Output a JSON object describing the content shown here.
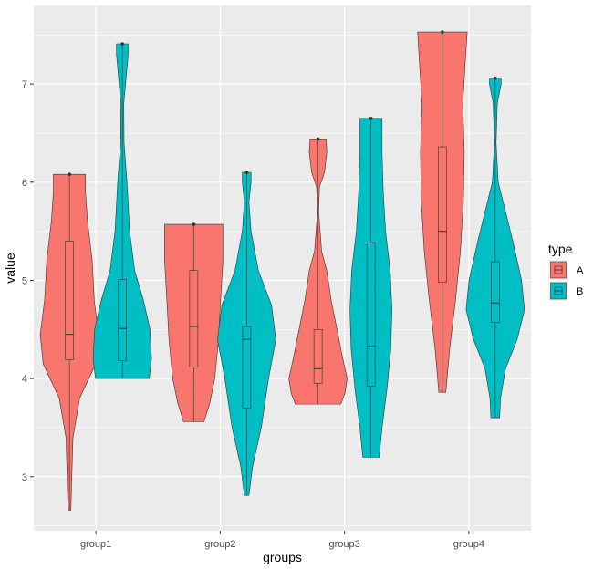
{
  "chart_data": {
    "type": "violin",
    "title": "",
    "xlabel": "groups",
    "ylabel": "value",
    "ylim": [
      2.45,
      7.8
    ],
    "yticks": [
      3,
      4,
      5,
      6,
      7
    ],
    "categories": [
      "group1",
      "group2",
      "group3",
      "group4"
    ],
    "legend": {
      "title": "type",
      "position": "right"
    },
    "grid": true,
    "series": [
      {
        "name": "A",
        "color": "#F8766D",
        "violins": [
          {
            "category": "group1",
            "min": 2.66,
            "max": 6.08,
            "q1": 4.19,
            "median": 4.45,
            "q3": 5.4,
            "shape": [
              [
                2.66,
                0.05
              ],
              [
                3.0,
                0.08
              ],
              [
                3.4,
                0.12
              ],
              [
                3.8,
                0.35
              ],
              [
                4.15,
                0.9
              ],
              [
                4.45,
                1.0
              ],
              [
                4.8,
                0.85
              ],
              [
                5.2,
                0.78
              ],
              [
                5.6,
                0.62
              ],
              [
                5.9,
                0.55
              ],
              [
                6.08,
                0.55
              ]
            ]
          },
          {
            "category": "group2",
            "min": 3.56,
            "max": 5.57,
            "q1": 4.12,
            "median": 4.53,
            "q3": 5.1,
            "shape": [
              [
                3.56,
                0.35
              ],
              [
                3.75,
                0.55
              ],
              [
                4.0,
                0.72
              ],
              [
                4.4,
                0.85
              ],
              [
                4.8,
                0.92
              ],
              [
                5.2,
                1.0
              ],
              [
                5.45,
                1.0
              ],
              [
                5.57,
                1.0
              ]
            ]
          },
          {
            "category": "group3",
            "min": 3.74,
            "max": 6.44,
            "q1": 3.95,
            "median": 4.1,
            "q3": 4.5,
            "shape": [
              [
                3.74,
                0.78
              ],
              [
                3.85,
                0.92
              ],
              [
                4.0,
                1.0
              ],
              [
                4.2,
                0.85
              ],
              [
                4.5,
                0.65
              ],
              [
                4.8,
                0.45
              ],
              [
                5.1,
                0.3
              ],
              [
                5.3,
                0.12
              ],
              [
                5.7,
                0.02
              ],
              [
                5.95,
                0.05
              ],
              [
                6.1,
                0.22
              ],
              [
                6.3,
                0.3
              ],
              [
                6.44,
                0.28
              ]
            ]
          },
          {
            "category": "group4",
            "min": 3.86,
            "max": 7.53,
            "q1": 4.98,
            "median": 5.5,
            "q3": 6.36,
            "shape": [
              [
                3.86,
                0.12
              ],
              [
                4.3,
                0.25
              ],
              [
                4.8,
                0.45
              ],
              [
                5.3,
                0.62
              ],
              [
                5.8,
                0.72
              ],
              [
                6.3,
                0.75
              ],
              [
                6.8,
                0.7
              ],
              [
                7.2,
                0.78
              ],
              [
                7.53,
                0.85
              ]
            ]
          }
        ]
      },
      {
        "name": "B",
        "color": "#00BFC4",
        "violins": [
          {
            "category": "group1",
            "min": 4.0,
            "max": 7.41,
            "q1": 4.18,
            "median": 4.51,
            "q3": 5.01,
            "shape": [
              [
                4.0,
                0.92
              ],
              [
                4.2,
                1.0
              ],
              [
                4.5,
                0.95
              ],
              [
                4.8,
                0.72
              ],
              [
                5.1,
                0.42
              ],
              [
                5.5,
                0.25
              ],
              [
                6.0,
                0.16
              ],
              [
                6.4,
                0.06
              ],
              [
                6.8,
                0.05
              ],
              [
                7.1,
                0.14
              ],
              [
                7.3,
                0.2
              ],
              [
                7.41,
                0.2
              ]
            ]
          },
          {
            "category": "group2",
            "min": 2.81,
            "max": 6.1,
            "q1": 3.7,
            "median": 4.4,
            "q3": 4.53,
            "shape": [
              [
                2.81,
                0.08
              ],
              [
                3.1,
                0.2
              ],
              [
                3.5,
                0.5
              ],
              [
                4.0,
                0.75
              ],
              [
                4.4,
                1.0
              ],
              [
                4.75,
                0.85
              ],
              [
                5.1,
                0.4
              ],
              [
                5.5,
                0.15
              ],
              [
                5.8,
                0.08
              ],
              [
                6.0,
                0.15
              ],
              [
                6.1,
                0.15
              ]
            ]
          },
          {
            "category": "group3",
            "min": 3.2,
            "max": 6.65,
            "q1": 3.92,
            "median": 4.33,
            "q3": 5.38,
            "shape": [
              [
                3.2,
                0.28
              ],
              [
                3.5,
                0.38
              ],
              [
                3.9,
                0.55
              ],
              [
                4.3,
                0.68
              ],
              [
                4.7,
                0.72
              ],
              [
                5.1,
                0.66
              ],
              [
                5.5,
                0.5
              ],
              [
                5.9,
                0.42
              ],
              [
                6.3,
                0.38
              ],
              [
                6.65,
                0.38
              ]
            ]
          },
          {
            "category": "group4",
            "min": 3.6,
            "max": 7.06,
            "q1": 4.57,
            "median": 4.77,
            "q3": 5.19,
            "shape": [
              [
                3.6,
                0.15
              ],
              [
                3.8,
                0.18
              ],
              [
                4.1,
                0.35
              ],
              [
                4.4,
                0.75
              ],
              [
                4.7,
                1.0
              ],
              [
                5.0,
                0.9
              ],
              [
                5.4,
                0.6
              ],
              [
                5.7,
                0.35
              ],
              [
                6.0,
                0.1
              ],
              [
                6.4,
                0.03
              ],
              [
                6.8,
                0.07
              ],
              [
                7.0,
                0.2
              ],
              [
                7.06,
                0.2
              ]
            ]
          }
        ]
      }
    ]
  }
}
